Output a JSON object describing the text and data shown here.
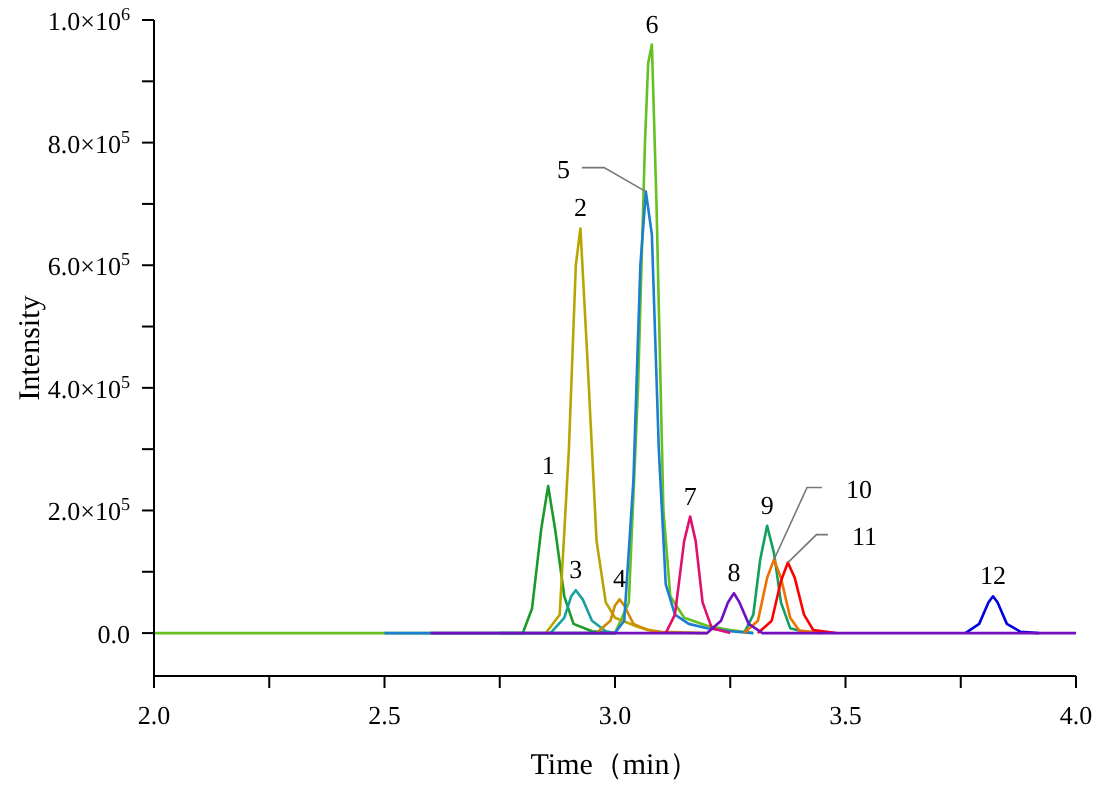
{
  "chart_data": {
    "type": "line",
    "xlabel": "Time（min）",
    "ylabel": "Intensity",
    "xlim": [
      2.0,
      4.0
    ],
    "xticks": [
      {
        "value": 2.0,
        "label": "2.0"
      },
      {
        "value": 2.25,
        "label": null
      },
      {
        "value": 2.5,
        "label": "2.5"
      },
      {
        "value": 2.75,
        "label": null
      },
      {
        "value": 3.0,
        "label": "3.0"
      },
      {
        "value": 3.25,
        "label": null
      },
      {
        "value": 3.5,
        "label": "3.5"
      },
      {
        "value": 3.75,
        "label": null
      },
      {
        "value": 4.0,
        "label": "4.0"
      }
    ],
    "ylim": [
      -70000,
      1000000
    ],
    "yticks": [
      {
        "value": 0,
        "label": "0.0"
      },
      {
        "value": 100000,
        "label": null
      },
      {
        "value": 200000,
        "label": "2.0×10$^{5}$"
      },
      {
        "value": 300000,
        "label": null
      },
      {
        "value": 400000,
        "label": "4.0×10$^{5}$"
      },
      {
        "value": 500000,
        "label": null
      },
      {
        "value": 600000,
        "label": "6.0×10$^{5}$"
      },
      {
        "value": 700000,
        "label": null
      },
      {
        "value": 800000,
        "label": "8.0×10$^{5}$"
      },
      {
        "value": 900000,
        "label": null
      },
      {
        "value": 1000000,
        "label": "1.0×10$^{6}$"
      }
    ],
    "grid": false,
    "series": [
      {
        "color": "#66c020",
        "x": [
          2.0,
          3.0,
          3.03,
          3.05,
          3.065,
          3.072,
          3.08,
          3.09,
          3.105,
          3.12,
          3.15,
          3.2,
          3.25,
          3.3
        ],
        "values": [
          0,
          0,
          50000,
          400000,
          800000,
          930000,
          960000,
          700000,
          200000,
          60000,
          25000,
          12000,
          5000,
          0
        ]
      },
      {
        "color": "#1a9a2a",
        "x": [
          2.75,
          2.8,
          2.82,
          2.84,
          2.855,
          2.87,
          2.89,
          2.91,
          2.95,
          3.0
        ],
        "values": [
          0,
          0,
          40000,
          170000,
          240000,
          170000,
          60000,
          15000,
          3000,
          0
        ]
      },
      {
        "color": "#b8a600",
        "x": [
          2.85,
          2.88,
          2.9,
          2.915,
          2.925,
          2.94,
          2.96,
          2.98,
          3.0,
          3.05,
          3.1
        ],
        "values": [
          0,
          30000,
          300000,
          600000,
          660000,
          450000,
          150000,
          50000,
          25000,
          10000,
          0
        ]
      },
      {
        "color": "#1aa0a0",
        "x": [
          2.86,
          2.89,
          2.905,
          2.915,
          2.93,
          2.95,
          2.98,
          3.0
        ],
        "values": [
          0,
          25000,
          60000,
          70000,
          55000,
          20000,
          3000,
          0
        ]
      },
      {
        "color": "#d08a00",
        "x": [
          2.96,
          2.99,
          3.0,
          3.01,
          3.02,
          3.04,
          3.07,
          3.1,
          3.2
        ],
        "values": [
          0,
          20000,
          45000,
          55000,
          45000,
          15000,
          5000,
          2000,
          0
        ]
      },
      {
        "color": "#1a7fd0",
        "x": [
          2.5,
          3.0,
          3.02,
          3.04,
          3.055,
          3.067,
          3.08,
          3.095,
          3.11,
          3.13,
          3.16,
          3.2,
          3.25,
          3.3
        ],
        "values": [
          0,
          0,
          20000,
          250000,
          600000,
          720000,
          650000,
          300000,
          80000,
          30000,
          15000,
          8000,
          3000,
          0
        ]
      },
      {
        "color": "#e0106e",
        "x": [
          3.11,
          3.13,
          3.15,
          3.163,
          3.175,
          3.19,
          3.21,
          3.25
        ],
        "values": [
          0,
          30000,
          150000,
          190000,
          150000,
          50000,
          8000,
          0
        ]
      },
      {
        "color": "#10a060",
        "x": [
          3.28,
          3.3,
          3.315,
          3.33,
          3.345,
          3.36,
          3.38,
          3.42
        ],
        "values": [
          0,
          30000,
          120000,
          175000,
          130000,
          50000,
          8000,
          0
        ]
      },
      {
        "color": "#f07000",
        "x": [
          3.28,
          3.31,
          3.33,
          3.345,
          3.36,
          3.38,
          3.4,
          3.45
        ],
        "values": [
          0,
          20000,
          90000,
          120000,
          90000,
          25000,
          4000,
          0
        ]
      },
      {
        "color": "#ff0000",
        "x": [
          3.31,
          3.34,
          3.36,
          3.375,
          3.39,
          3.41,
          3.43,
          3.48
        ],
        "values": [
          0,
          20000,
          85000,
          115000,
          90000,
          30000,
          5000,
          0
        ]
      },
      {
        "color": "#0000e0",
        "x": [
          3.76,
          3.79,
          3.81,
          3.82,
          3.83,
          3.85,
          3.88,
          3.92
        ],
        "values": [
          0,
          15000,
          50000,
          60000,
          50000,
          15000,
          2000,
          0
        ]
      },
      {
        "color": "#7010c0",
        "x": [
          2.6,
          3.2,
          3.23,
          3.245,
          3.258,
          3.27,
          3.29,
          3.32,
          4.0
        ],
        "values": [
          0,
          0,
          20000,
          50000,
          65000,
          50000,
          15000,
          0,
          0
        ]
      }
    ],
    "annotations": [
      {
        "text": "1",
        "x": 2.855,
        "y": 240000
      },
      {
        "text": "2",
        "x": 2.925,
        "y": 660000
      },
      {
        "text": "3",
        "x": 2.915,
        "y": 70000
      },
      {
        "text": "4",
        "x": 3.01,
        "y": 55000
      },
      {
        "text": "5",
        "x": 3.067,
        "y": 720000
      },
      {
        "text": "6",
        "x": 3.08,
        "y": 960000
      },
      {
        "text": "7",
        "x": 3.163,
        "y": 190000
      },
      {
        "text": "8",
        "x": 3.258,
        "y": 65000
      },
      {
        "text": "9",
        "x": 3.33,
        "y": 175000
      },
      {
        "text": "10",
        "x": 3.345,
        "y": 120000
      },
      {
        "text": "11",
        "x": 3.375,
        "y": 115000
      },
      {
        "text": "12",
        "x": 3.82,
        "y": 60000
      }
    ]
  }
}
